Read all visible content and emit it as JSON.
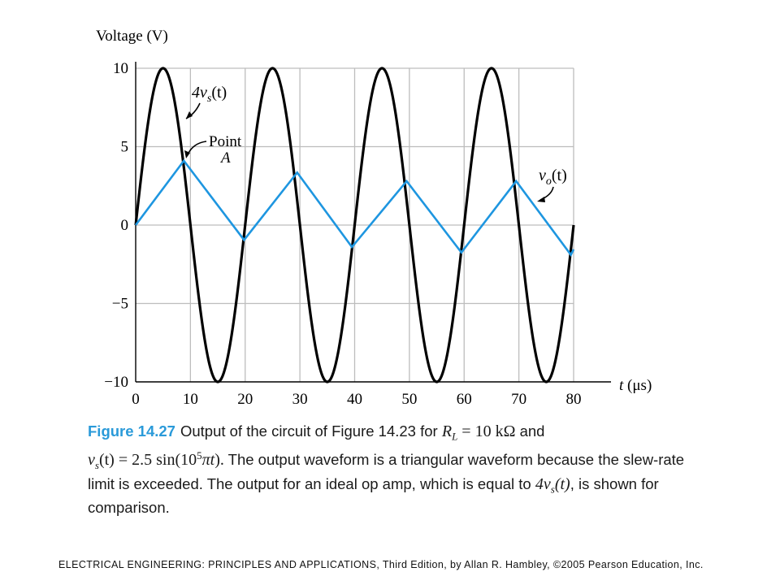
{
  "chart_data": {
    "type": "line",
    "ylabel": "Voltage (V)",
    "xlabel_italic": "t",
    "xlabel_rest": " (μs)",
    "xlim": [
      0,
      80
    ],
    "ylim": [
      -10,
      10
    ],
    "x_ticks": [
      0,
      10,
      20,
      30,
      40,
      50,
      60,
      70,
      80
    ],
    "y_ticks": [
      10,
      5,
      0,
      -5,
      -10
    ],
    "y_tick_labels": [
      "10",
      "5",
      "0",
      "−5",
      "−10"
    ],
    "grid": true,
    "colors": {
      "input": "#000000",
      "output": "#1e96e0",
      "grid": "#bdbdbd"
    },
    "series": [
      {
        "key": "input",
        "label_main": "4v",
        "label_sub": "s",
        "label_tail": "(t)",
        "function": "10*sin(2*pi*t/20)",
        "x": [
          0,
          5,
          10,
          15,
          20,
          25,
          30,
          35,
          40,
          45,
          50,
          55,
          60,
          65,
          70,
          75,
          80
        ],
        "y": [
          0,
          10,
          0,
          -10,
          0,
          10,
          0,
          -10,
          0,
          10,
          0,
          -10,
          0,
          10,
          0,
          -10,
          0
        ]
      },
      {
        "key": "output",
        "label_main": "v",
        "label_sub": "o",
        "label_tail": "(t)",
        "x": [
          0,
          8.8,
          19.8,
          29.5,
          39.5,
          49.5,
          59.5,
          69.5,
          79.5,
          80
        ],
        "y": [
          0,
          4.1,
          -0.95,
          3.35,
          -1.4,
          2.8,
          -1.75,
          2.8,
          -1.9,
          -1.55
        ]
      }
    ],
    "annotations": [
      {
        "key": "point_a",
        "line1": "Point",
        "line2": "A",
        "x": 8.8,
        "y": 4.1
      }
    ]
  },
  "caption": {
    "figure_label": "Figure 14.27",
    "part1": "Output of the circuit of Figure 14.23 for ",
    "rl_main": "R",
    "rl_sub": "L",
    "rl_value": " = 10 kΩ",
    "and": " and",
    "vs_main": "v",
    "vs_sub": "s",
    "vs_expr": "(t) = 2.5 sin(10",
    "vs_exp": "5",
    "vs_pi": "πt",
    "vs_close": ").",
    "part2": " The output waveform is a triangular waveform because the slew-rate limit is exceeded. The output for an ideal op amp, which is equal to ",
    "cmp_main": "4v",
    "cmp_sub": "s",
    "cmp_tail": "(t)",
    "part3": ", is shown for comparison."
  },
  "footer": "ELECTRICAL ENGINEERING: PRINCIPLES AND APPLICATIONS, Third Edition, by Allan R. Hambley, ©2005 Pearson Education, Inc."
}
